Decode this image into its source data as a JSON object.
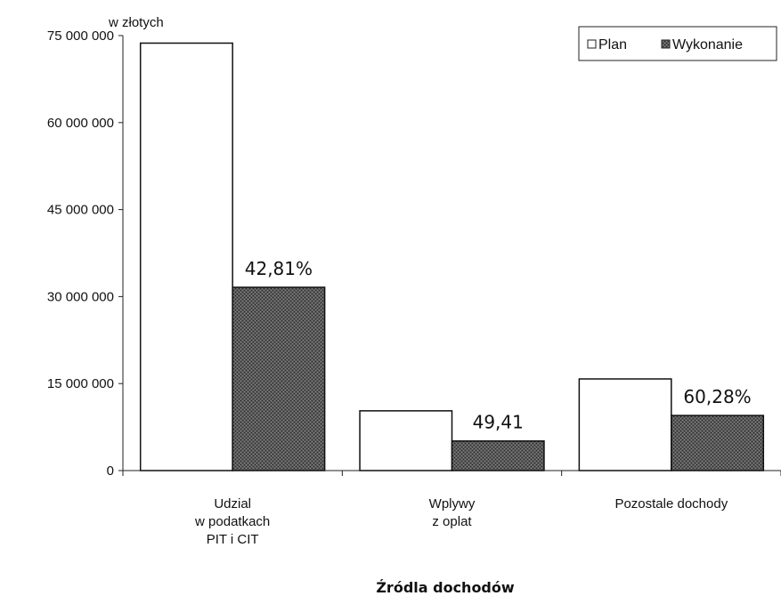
{
  "chart_data": {
    "type": "bar",
    "categories": [
      [
        "Udzial",
        "w podatkach",
        "PIT i CIT"
      ],
      [
        "Wplywy",
        "z oplat"
      ],
      [
        "Pozostale dochody"
      ]
    ],
    "series": [
      {
        "name": "Plan",
        "values": [
          73700000,
          10300000,
          15800000
        ],
        "color": "#ffffff"
      },
      {
        "name": "Wykonanie",
        "values": [
          31600000,
          5100000,
          9500000
        ],
        "color": "#4a4a4a",
        "labels": [
          "42,81%",
          "49,41",
          "60,28%"
        ]
      }
    ],
    "y_unit_label": "w złotych",
    "xlabel": "Źródla dochodów",
    "ylim": [
      0,
      75000000
    ],
    "y_ticks": [
      0,
      15000000,
      30000000,
      45000000,
      60000000,
      75000000
    ],
    "y_tick_labels": [
      "0",
      "15 000 000",
      "30 000 000",
      "45 000 000",
      "60 000 000",
      "75 000 000"
    ],
    "grid": false,
    "legend_position": "top-right"
  }
}
